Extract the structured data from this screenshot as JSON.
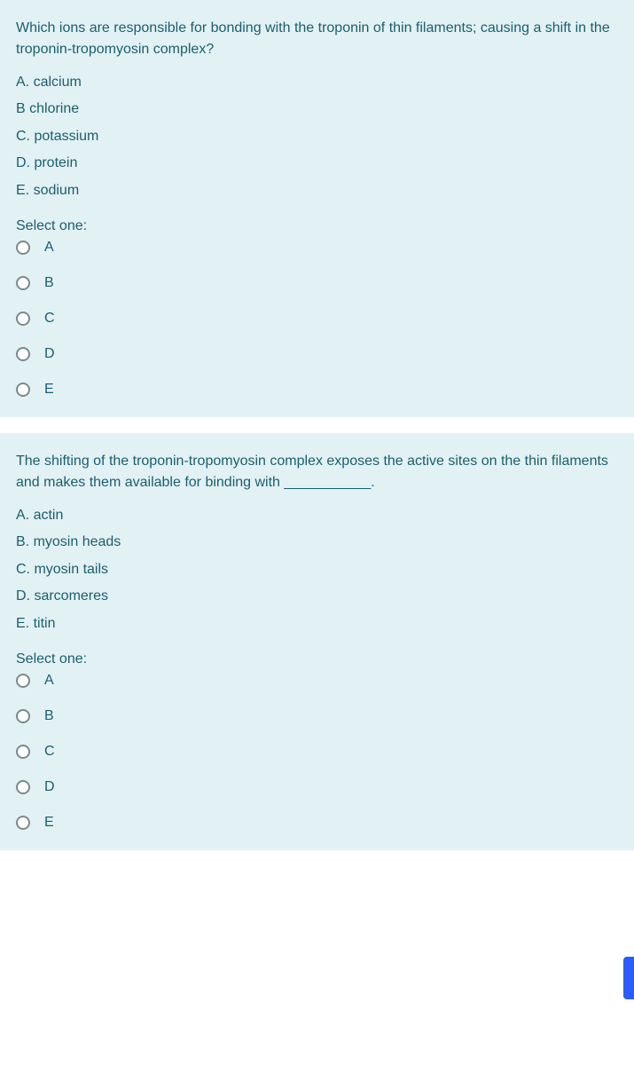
{
  "colors": {
    "panel_bg": "#e2f1f4",
    "text": "#1a5f6e",
    "radio_border": "#7a8a8f",
    "side_tab": "#2a5cff"
  },
  "questions": [
    {
      "prompt": "Which ions are responsible for bonding with the troponin of thin filaments; causing a shift in the troponin-tropomyosin complex?",
      "options": [
        "A.  calcium",
        "B  chlorine",
        "C.  potassium",
        "D.  protein",
        "E.  sodium"
      ],
      "select_label": "Select one:",
      "choices": [
        "A",
        "B",
        "C",
        "D",
        "E"
      ]
    },
    {
      "prompt": "The shifting of the troponin-tropomyosin complex exposes the active sites on the thin filaments and makes them available for binding with ___________.",
      "options": [
        "A.  actin",
        "B.  myosin heads",
        "C.  myosin tails",
        "D.  sarcomeres",
        "E.   titin"
      ],
      "select_label": "Select one:",
      "choices": [
        "A",
        "B",
        "C",
        "D",
        "E"
      ]
    }
  ]
}
